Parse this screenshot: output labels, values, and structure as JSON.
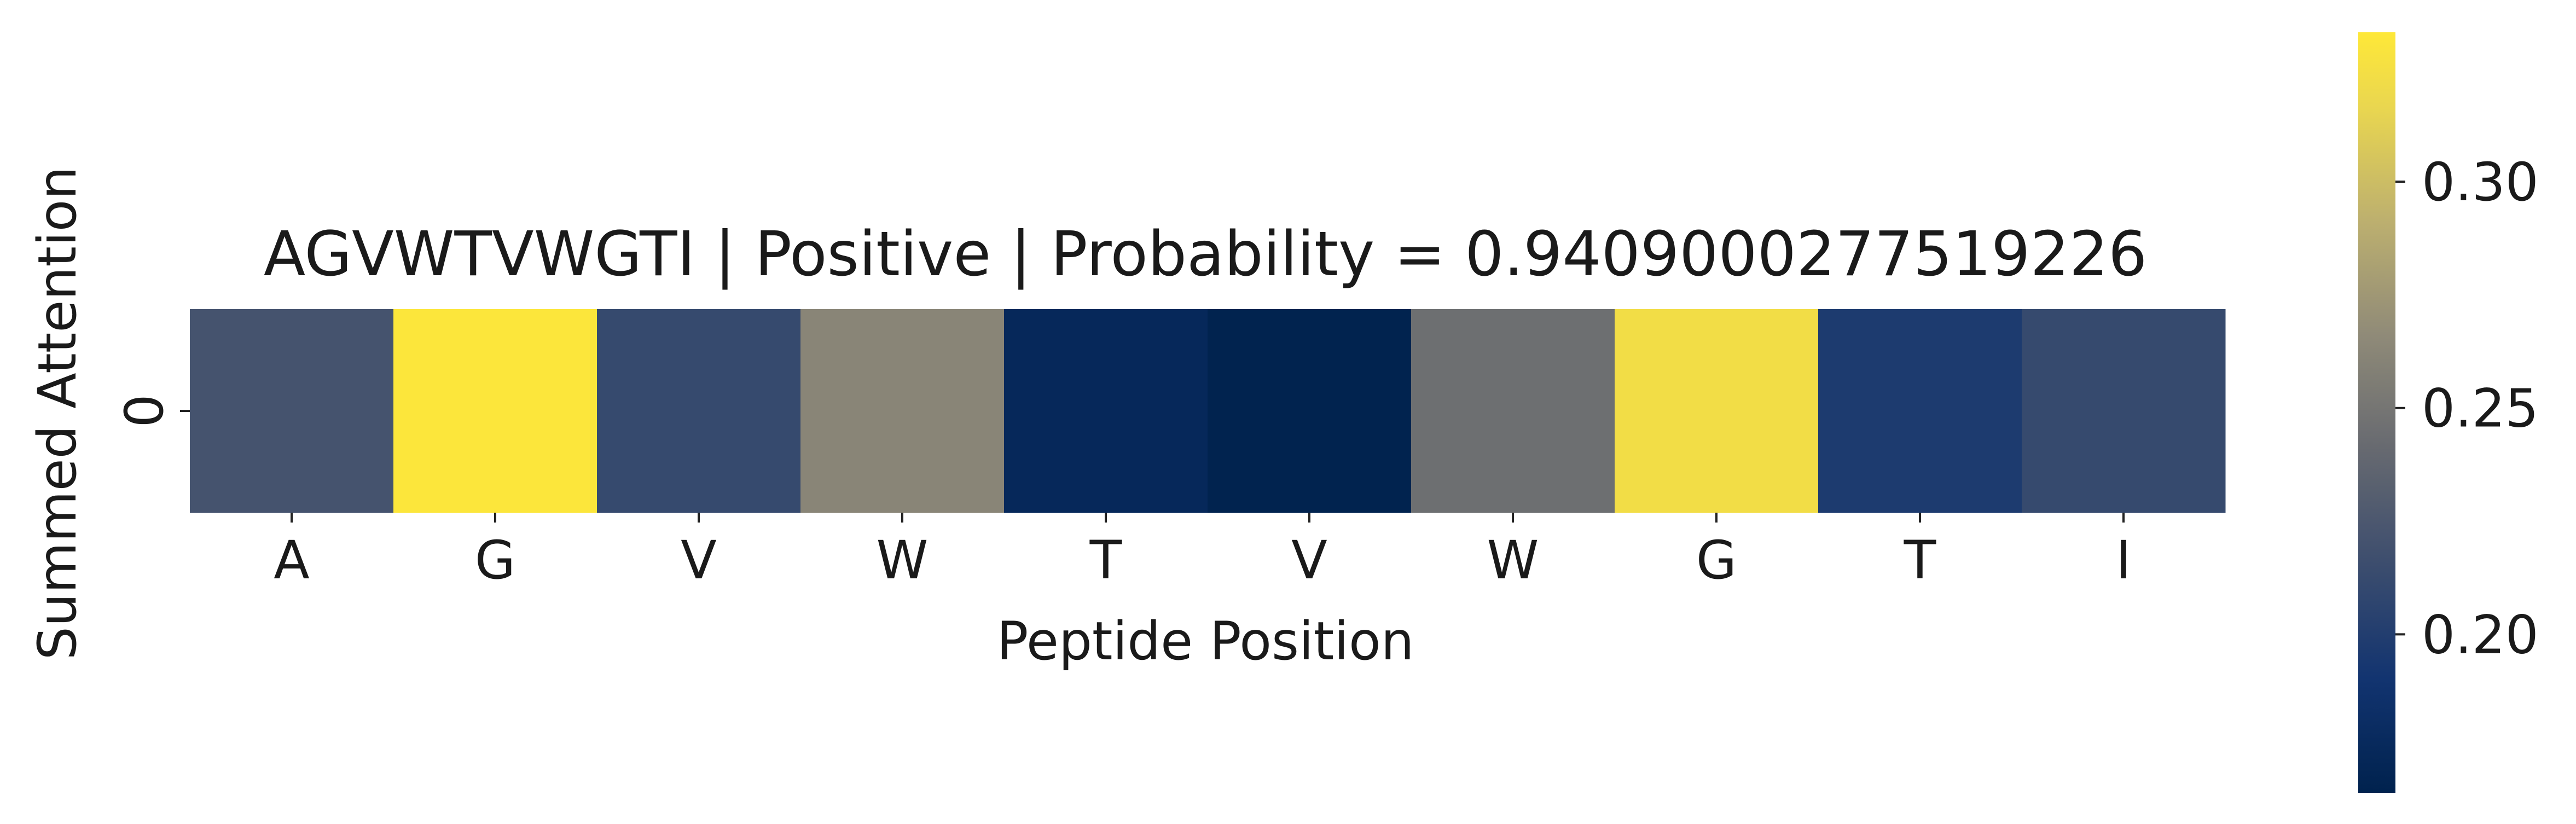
{
  "chart_data": {
    "type": "heatmap",
    "title": "AGVWTVWGTI | Positive | Probability = 0.9409000277519226",
    "xlabel": "Peptide Position",
    "ylabel": "Summed Attention",
    "x_categories": [
      "A",
      "G",
      "V",
      "W",
      "T",
      "V",
      "W",
      "G",
      "T",
      "I"
    ],
    "y_categories": [
      "0"
    ],
    "values": [
      [
        0.221,
        0.331,
        0.212,
        0.262,
        0.174,
        0.166,
        0.245,
        0.323,
        0.197,
        0.212
      ]
    ],
    "colorbar": {
      "colormap": "cividis",
      "vmin": 0.165,
      "vmax": 0.333,
      "ticks": [
        0.2,
        0.25,
        0.3
      ],
      "tick_labels": [
        "0.20",
        "0.25",
        "0.30"
      ]
    }
  }
}
